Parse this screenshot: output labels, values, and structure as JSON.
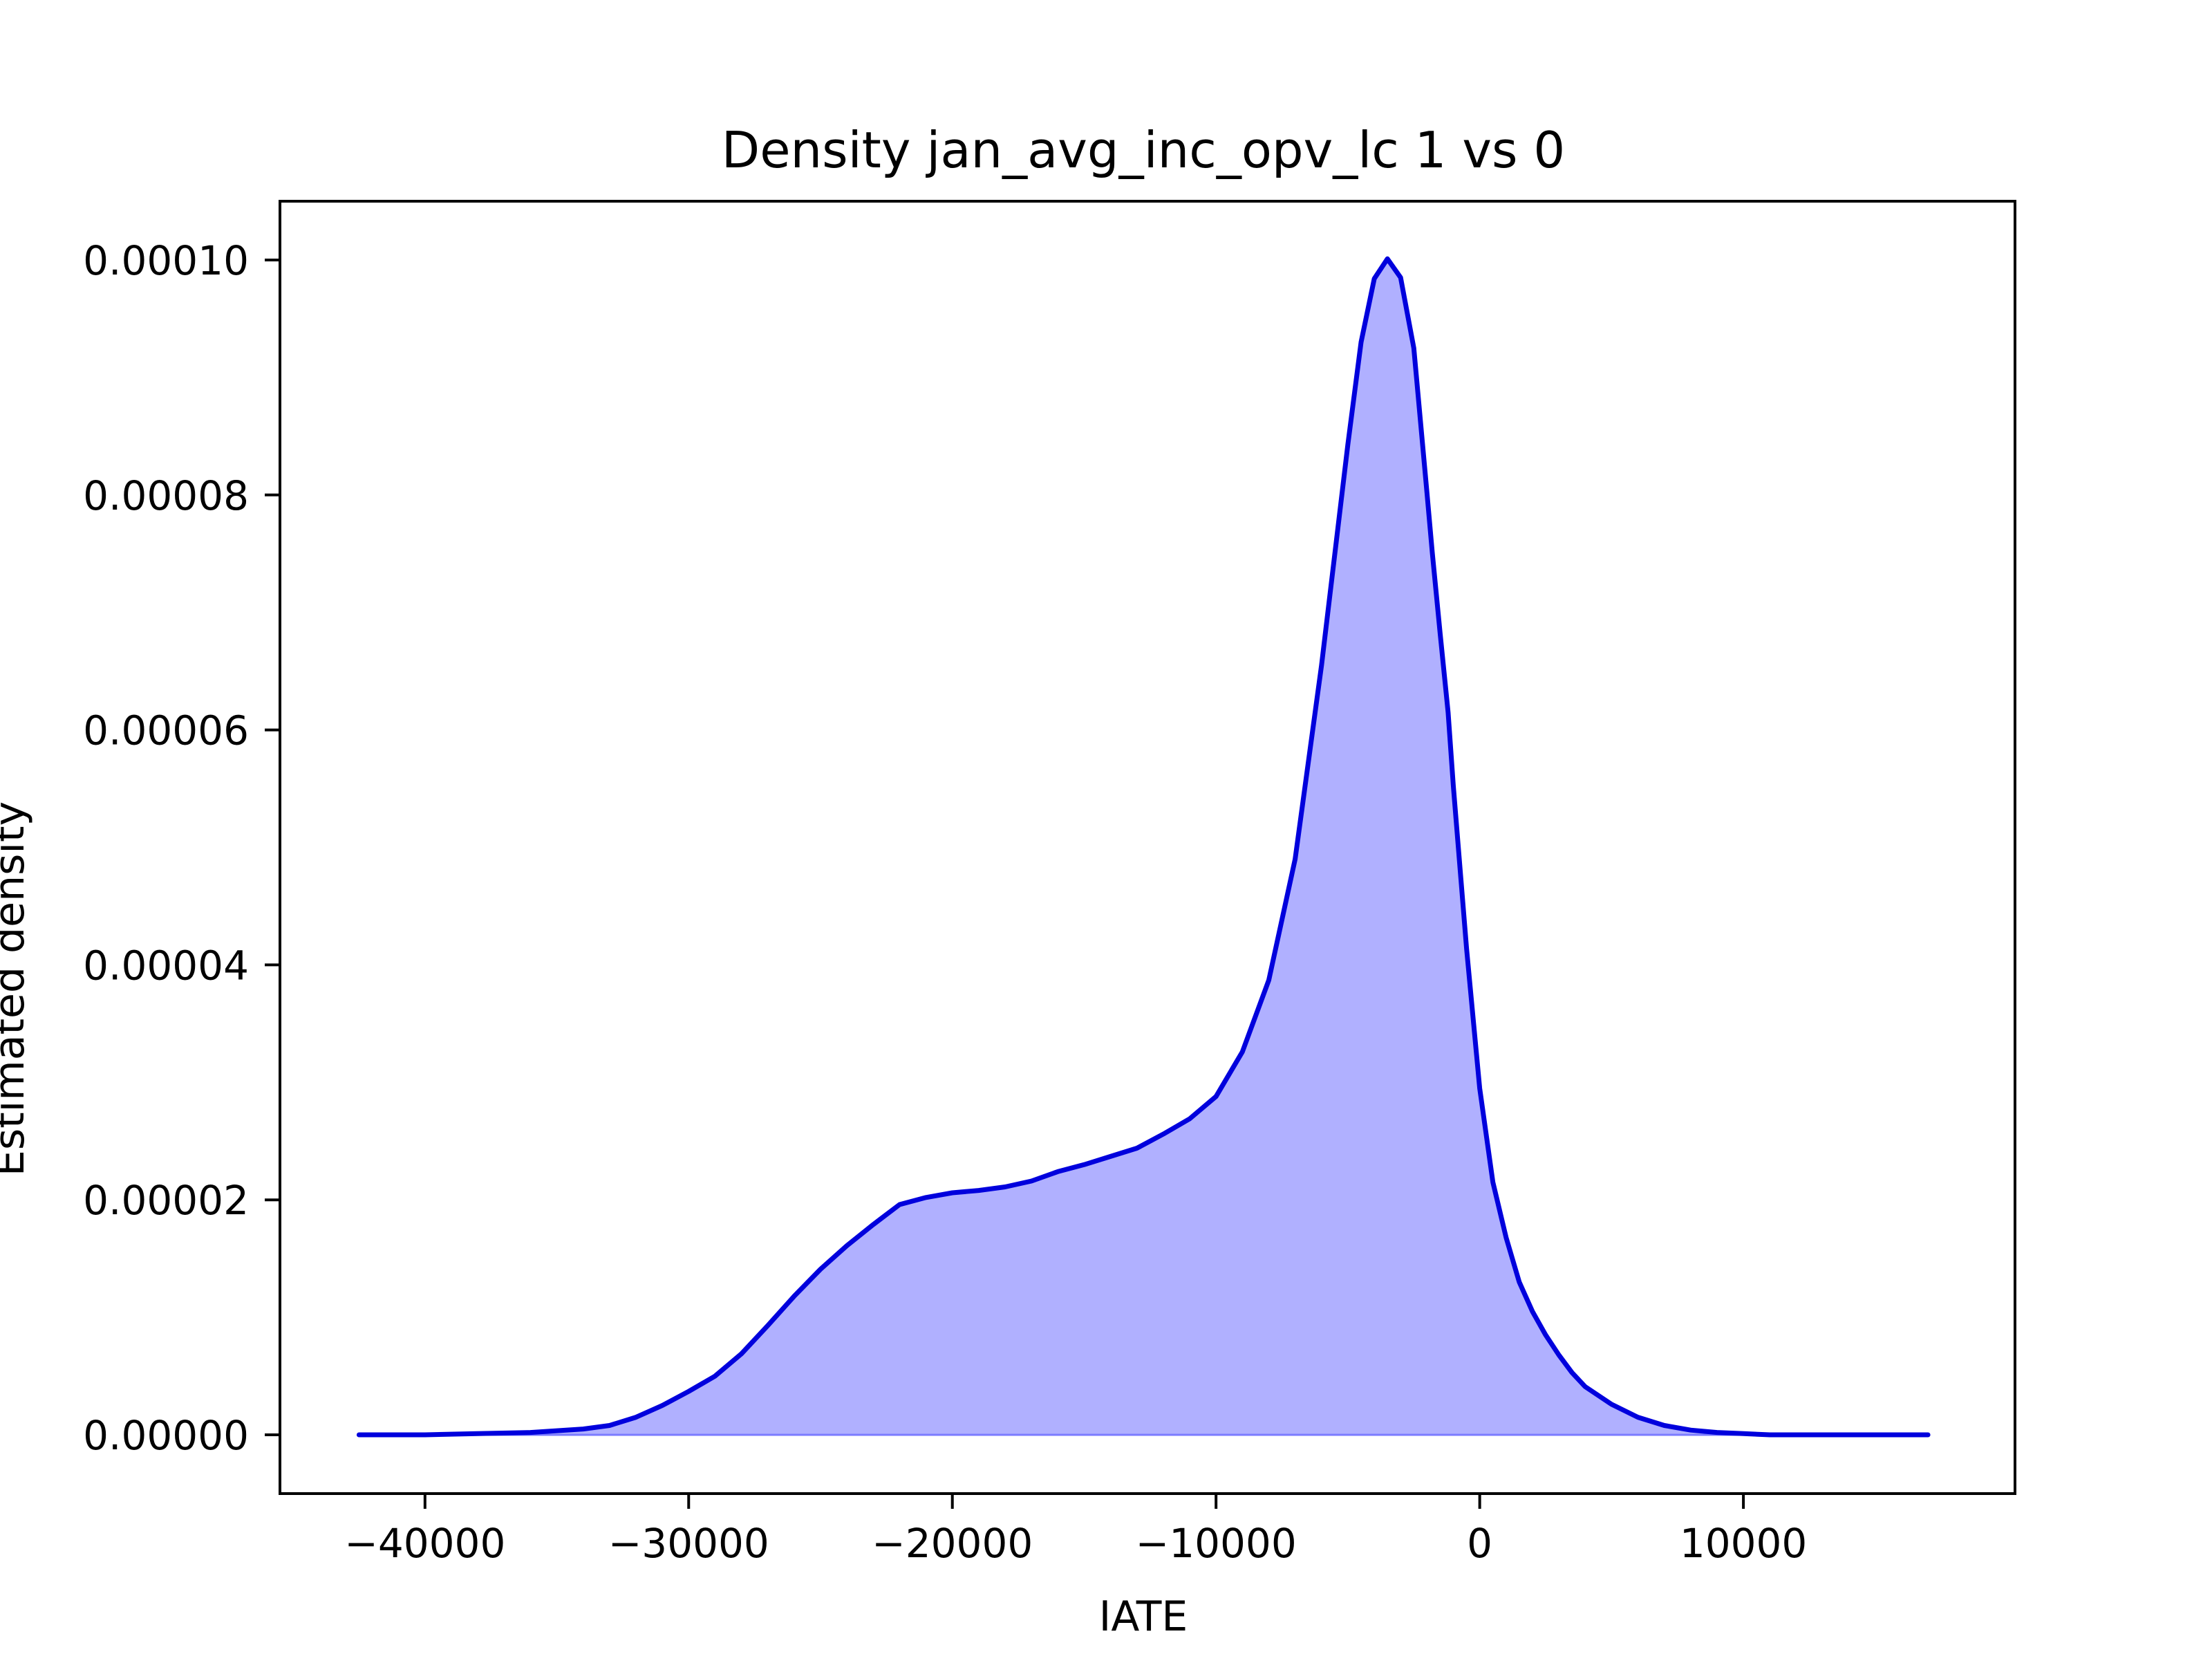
{
  "chart_data": {
    "type": "area",
    "title": "Density jan_avg_inc_opv_lc 1 vs 0",
    "xlabel": "IATE",
    "ylabel": "Estimated density",
    "xlim": [
      -45500,
      20300
    ],
    "ylim": [
      -5e-06,
      0.000105
    ],
    "xticks": [
      -40000,
      -30000,
      -20000,
      -10000,
      0,
      10000
    ],
    "xtick_labels": [
      "−40000",
      "−30000",
      "−20000",
      "−10000",
      "0",
      "10000"
    ],
    "yticks": [
      0,
      2e-05,
      4e-05,
      6e-05,
      8e-05,
      0.0001
    ],
    "ytick_labels": [
      "0.00000",
      "0.00002",
      "0.00004",
      "0.00006",
      "0.00008",
      "0.00010"
    ],
    "grid": false,
    "line_color": "#0000dd",
    "fill_color": "#b0b0ff",
    "series": [
      {
        "x": [
          -42500,
          -40000,
          -38000,
          -36000,
          -34000,
          -33000,
          -32000,
          -31000,
          -30000,
          -29000,
          -28000,
          -27000,
          -26000,
          -25000,
          -24000,
          -23000,
          -22000,
          -21000,
          -20000,
          -19000,
          -18000,
          -17000,
          -16000,
          -15000,
          -14000,
          -13000,
          -12000,
          -11000,
          -10000,
          -9000,
          -8000,
          -7000,
          -6000,
          -5000,
          -4500,
          -4000,
          -3500,
          -3000,
          -2500,
          -2000,
          -1800,
          -1500,
          -1200,
          -1000,
          -500,
          0,
          500,
          1000,
          1500,
          2000,
          2500,
          3000,
          3500,
          4000,
          5000,
          6000,
          7000,
          8000,
          9000,
          10000,
          11000,
          12000,
          13000,
          14000,
          15000,
          16000,
          17000
        ],
        "y": [
          0,
          0,
          1e-07,
          2e-07,
          5e-07,
          8e-07,
          1.5e-06,
          2.5e-06,
          3.7e-06,
          5e-06,
          6.9e-06,
          9.3e-06,
          1.18e-05,
          1.41e-05,
          1.61e-05,
          1.79e-05,
          1.96e-05,
          2.02e-05,
          2.06e-05,
          2.08e-05,
          2.11e-05,
          2.16e-05,
          2.24e-05,
          2.3e-05,
          2.37e-05,
          2.44e-05,
          2.56e-05,
          2.69e-05,
          2.88e-05,
          3.26e-05,
          3.87e-05,
          4.9e-05,
          6.55e-05,
          8.43e-05,
          9.3e-05,
          9.84e-05,
          0.0001001,
          9.85e-05,
          9.25e-05,
          8.02e-05,
          7.51e-05,
          6.82e-05,
          6.15e-05,
          5.52e-05,
          4.14e-05,
          2.95e-05,
          2.15e-05,
          1.68e-05,
          1.3e-05,
          1.05e-05,
          8.5e-06,
          6.8e-06,
          5.3e-06,
          4.1e-06,
          2.6e-06,
          1.5e-06,
          8e-07,
          4e-07,
          2e-07,
          1e-07,
          0,
          0,
          0,
          0,
          0,
          0,
          0
        ]
      }
    ]
  }
}
